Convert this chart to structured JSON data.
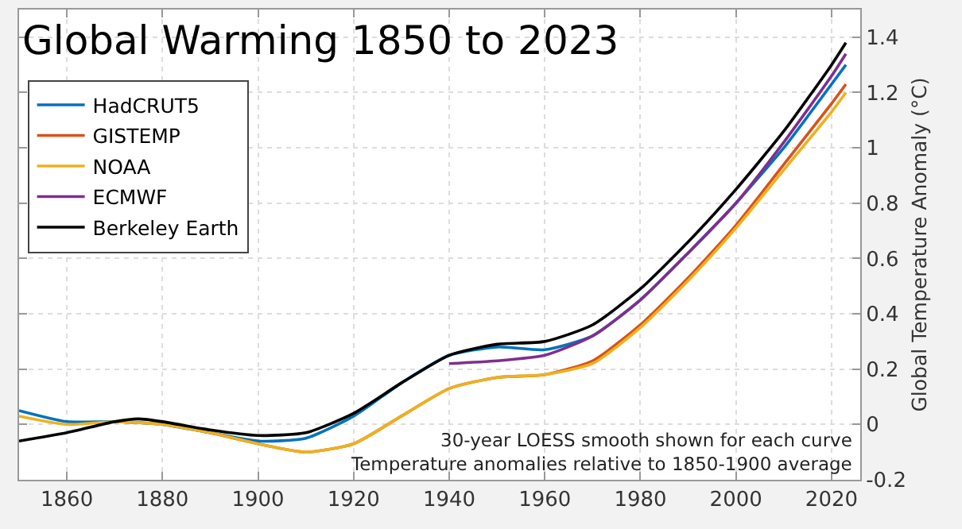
{
  "chart_data": {
    "type": "line",
    "title": "Global Warming 1850 to 2023",
    "ylabel": "Global Temperature Anomaly (°C)",
    "annotations": [
      "30-year LOESS smooth shown for each curve",
      "Temperature anomalies relative to 1850-1900 average"
    ],
    "xlim": [
      1850,
      2026
    ],
    "xticks": [
      1860,
      1880,
      1900,
      1920,
      1940,
      1960,
      1980,
      2000,
      2020
    ],
    "ylim": [
      -0.2,
      1.5
    ],
    "yticks": [
      -0.2,
      0,
      0.2,
      0.4,
      0.6,
      0.8,
      1,
      1.2,
      1.4
    ],
    "grid": true,
    "legend": "top left",
    "marker": "none",
    "line_style": "solid",
    "series": [
      {
        "name": "HadCRUT5",
        "color": "#0072bd",
        "x": [
          1850,
          1860,
          1870,
          1880,
          1890,
          1900,
          1910,
          1920,
          1930,
          1940,
          1950,
          1960,
          1970,
          1980,
          1990,
          2000,
          2010,
          2020,
          2023
        ],
        "values": [
          0.05,
          0.01,
          0.01,
          0.0,
          -0.03,
          -0.06,
          -0.05,
          0.03,
          0.15,
          0.25,
          0.28,
          0.27,
          0.32,
          0.45,
          0.62,
          0.8,
          1.0,
          1.23,
          1.3
        ]
      },
      {
        "name": "GISTEMP",
        "color": "#d95319",
        "x": [
          1880,
          1890,
          1900,
          1910,
          1920,
          1930,
          1940,
          1950,
          1960,
          1970,
          1980,
          1990,
          2000,
          2010,
          2020,
          2023
        ],
        "values": [
          0.01,
          -0.03,
          -0.07,
          -0.1,
          -0.07,
          0.03,
          0.13,
          0.17,
          0.18,
          0.23,
          0.36,
          0.53,
          0.72,
          0.94,
          1.16,
          1.23
        ]
      },
      {
        "name": "NOAA",
        "color": "#edb120",
        "x": [
          1850,
          1860,
          1870,
          1880,
          1890,
          1900,
          1910,
          1920,
          1930,
          1940,
          1950,
          1960,
          1970,
          1980,
          1990,
          2000,
          2010,
          2020,
          2023
        ],
        "values": [
          0.03,
          0.0,
          0.01,
          0.0,
          -0.03,
          -0.07,
          -0.1,
          -0.07,
          0.03,
          0.13,
          0.17,
          0.18,
          0.22,
          0.35,
          0.52,
          0.71,
          0.92,
          1.13,
          1.2
        ]
      },
      {
        "name": "ECMWF",
        "color": "#7e2f8e",
        "x": [
          1940,
          1950,
          1960,
          1970,
          1980,
          1990,
          2000,
          2010,
          2020,
          2023
        ],
        "values": [
          0.22,
          0.23,
          0.25,
          0.32,
          0.45,
          0.62,
          0.8,
          1.02,
          1.26,
          1.34
        ]
      },
      {
        "name": "Berkeley Earth",
        "color": "#000000",
        "x": [
          1850,
          1860,
          1870,
          1875,
          1880,
          1890,
          1900,
          1910,
          1920,
          1930,
          1940,
          1950,
          1960,
          1970,
          1980,
          1990,
          2000,
          2010,
          2020,
          2023
        ],
        "values": [
          -0.06,
          -0.03,
          0.01,
          0.02,
          0.01,
          -0.02,
          -0.04,
          -0.03,
          0.04,
          0.15,
          0.25,
          0.29,
          0.3,
          0.36,
          0.49,
          0.66,
          0.85,
          1.06,
          1.3,
          1.38
        ]
      }
    ]
  }
}
